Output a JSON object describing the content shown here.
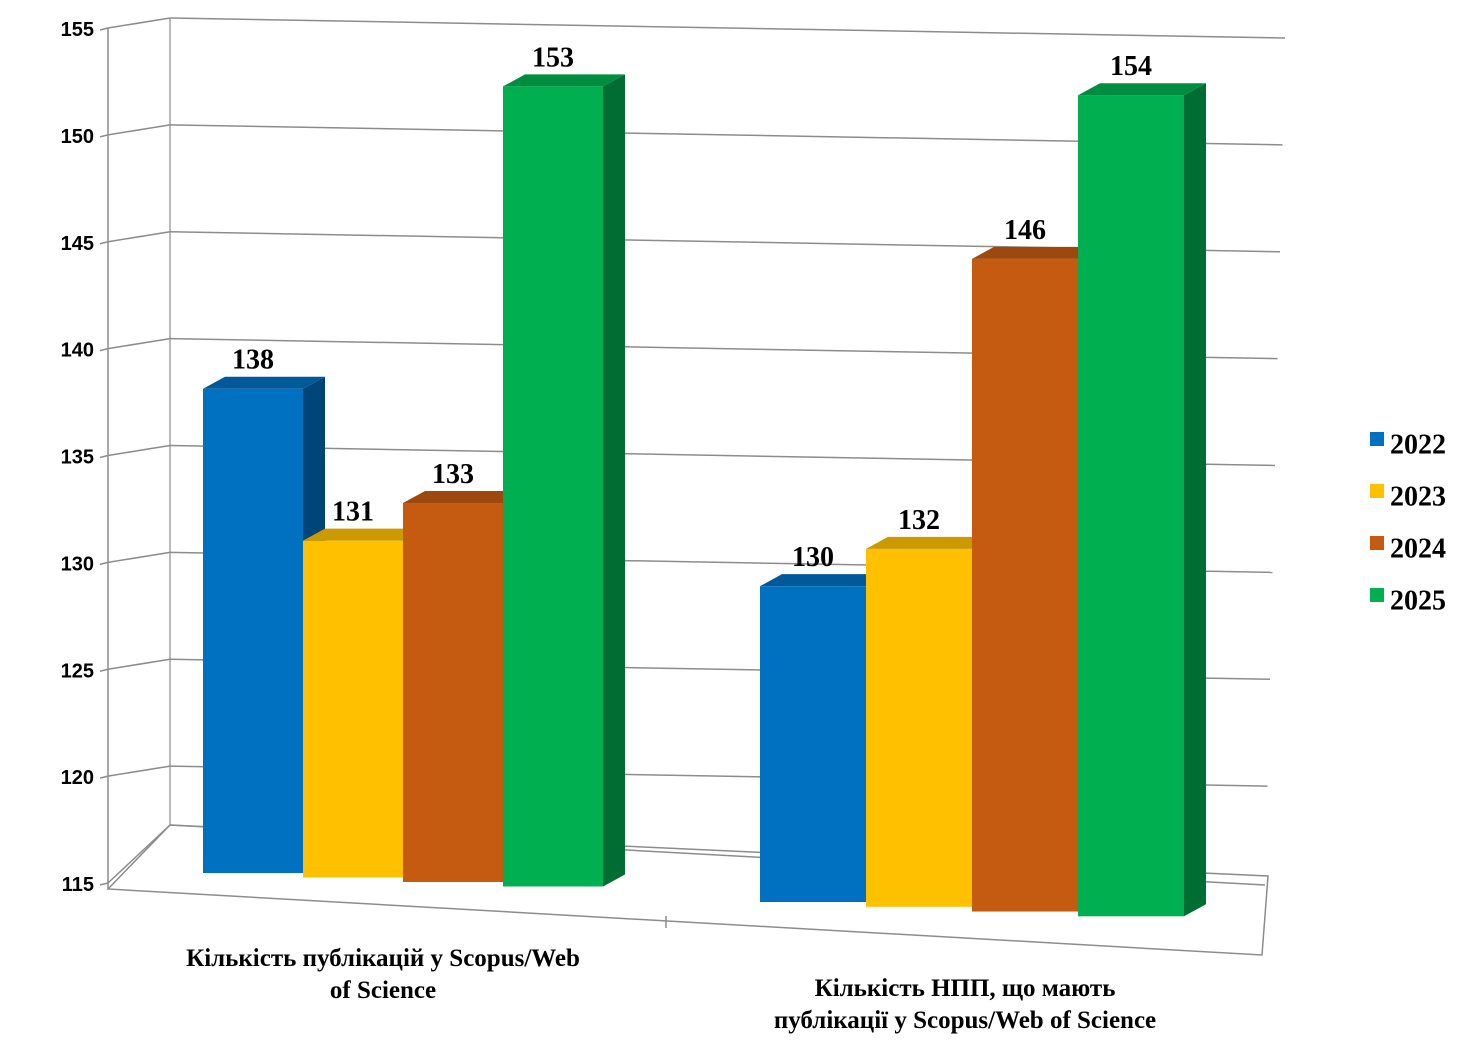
{
  "chart_data": {
    "type": "bar",
    "categories": [
      [
        "Кількість публікацій у Scopus/Web",
        "of Science"
      ],
      [
        "Кількість НПП, що мають",
        "публікації у Scopus/Web of Science"
      ]
    ],
    "series": [
      {
        "name": "2022",
        "values": [
          138,
          130
        ],
        "color": "#0070C0"
      },
      {
        "name": "2023",
        "values": [
          131,
          132
        ],
        "color": "#FFC000"
      },
      {
        "name": "2024",
        "values": [
          133,
          146
        ],
        "color": "#C55A11"
      },
      {
        "name": "2025",
        "values": [
          153,
          154
        ],
        "color": "#00B050"
      }
    ],
    "ylim": [
      115,
      155
    ],
    "yticks": [
      115,
      120,
      125,
      130,
      135,
      140,
      145,
      150,
      155
    ],
    "grid": true,
    "legend": "right",
    "style": "3d"
  }
}
